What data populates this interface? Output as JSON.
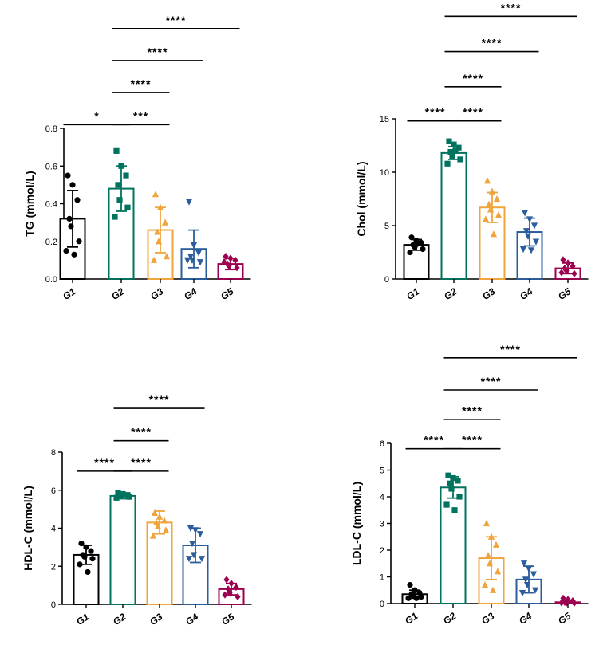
{
  "colors": {
    "G1": "#000000",
    "G2": "#00735e",
    "G3": "#f0a43c",
    "G4": "#2b5d9c",
    "G5": "#9c0050"
  },
  "chart_data": [
    {
      "type": "bar",
      "ylabel": "TG (mmol/L)",
      "ylim": [
        0,
        0.8
      ],
      "yticks": [
        "0.0",
        "0.2",
        "0.4",
        "0.6",
        "0.8"
      ],
      "categories": [
        "G1",
        "G2",
        "G3",
        "G4",
        "G5"
      ],
      "values": [
        0.32,
        0.48,
        0.26,
        0.16,
        0.08
      ],
      "errors": [
        0.15,
        0.12,
        0.12,
        0.1,
        0.03
      ],
      "points": [
        [
          0.55,
          0.5,
          0.42,
          0.32,
          0.28,
          0.2,
          0.15,
          0.13
        ],
        [
          0.68,
          0.6,
          0.55,
          0.5,
          0.42,
          0.38,
          0.33
        ],
        [
          0.45,
          0.38,
          0.3,
          0.25,
          0.2,
          0.12,
          0.1
        ],
        [
          0.41,
          0.18,
          0.14,
          0.12,
          0.1,
          0.09,
          0.1
        ],
        [
          0.12,
          0.11,
          0.1,
          0.08,
          0.07,
          0.06,
          0.09
        ]
      ],
      "markers": [
        "circle",
        "square",
        "triangle-up",
        "triangle-down",
        "diamond"
      ],
      "significance": [
        {
          "from": 0,
          "to": 1,
          "label": "*",
          "y": 0.82
        },
        {
          "from": 1,
          "to": 2,
          "label": "***",
          "y": 0.82
        },
        {
          "from": 1,
          "to": 2,
          "label": "****",
          "y": 0.99
        },
        {
          "from": 1,
          "to": 3,
          "label": "****",
          "y": 1.16
        },
        {
          "from": 1,
          "to": 4,
          "label": "****",
          "y": 1.33
        }
      ]
    },
    {
      "type": "bar",
      "ylabel": "Chol (mmol/L)",
      "ylim": [
        0,
        15
      ],
      "yticks": [
        "0",
        "5",
        "10",
        "15"
      ],
      "categories": [
        "G1",
        "G2",
        "G3",
        "G4",
        "G5"
      ],
      "values": [
        3.2,
        11.8,
        6.7,
        4.4,
        1.0
      ],
      "errors": [
        0.5,
        0.6,
        1.4,
        1.3,
        0.5
      ],
      "points": [
        [
          3.9,
          3.6,
          3.4,
          3.2,
          3.0,
          2.8,
          2.5,
          3.3
        ],
        [
          12.9,
          12.6,
          12.3,
          11.9,
          11.5,
          11.2,
          10.8,
          12.0
        ],
        [
          9.2,
          8.2,
          7.5,
          7.0,
          6.5,
          6.0,
          5.6,
          4.2
        ],
        [
          6.2,
          5.6,
          5.0,
          4.5,
          4.0,
          3.5,
          2.8,
          2.7
        ],
        [
          1.8,
          1.5,
          1.2,
          1.0,
          0.8,
          0.5,
          0.6
        ]
      ],
      "markers": [
        "circle",
        "square",
        "triangle-up",
        "triangle-down",
        "diamond"
      ],
      "significance": [
        {
          "from": 0,
          "to": 1,
          "label": "****",
          "y": 14.8
        },
        {
          "from": 1,
          "to": 2,
          "label": "****",
          "y": 14.8
        },
        {
          "from": 1,
          "to": 2,
          "label": "****",
          "y": 18.0
        },
        {
          "from": 1,
          "to": 3,
          "label": "****",
          "y": 21.3
        },
        {
          "from": 1,
          "to": 4,
          "label": "****",
          "y": 24.6
        }
      ]
    },
    {
      "type": "bar",
      "ylabel": "HDL-C (mmol/L)",
      "ylim": [
        0,
        8
      ],
      "yticks": [
        "0",
        "2",
        "4",
        "6",
        "8"
      ],
      "categories": [
        "G1",
        "G2",
        "G3",
        "G4",
        "G5"
      ],
      "values": [
        2.6,
        5.7,
        4.3,
        3.1,
        0.8
      ],
      "errors": [
        0.5,
        0.15,
        0.6,
        0.9,
        0.3
      ],
      "points": [
        [
          3.2,
          3.0,
          2.8,
          2.6,
          2.5,
          2.4,
          2.1,
          1.7
        ],
        [
          5.85,
          5.8,
          5.75,
          5.7,
          5.7,
          5.65,
          5.6
        ],
        [
          4.8,
          4.6,
          4.4,
          4.3,
          4.1,
          3.9,
          3.6
        ],
        [
          4.0,
          3.9,
          3.7,
          3.2,
          2.6,
          2.4,
          2.4
        ],
        [
          1.3,
          1.1,
          0.9,
          0.8,
          0.6,
          0.4,
          0.5
        ]
      ],
      "markers": [
        "circle",
        "square",
        "triangle-up",
        "triangle-down",
        "diamond"
      ],
      "significance": [
        {
          "from": 0,
          "to": 1,
          "label": "****",
          "y": 7.0
        },
        {
          "from": 1,
          "to": 2,
          "label": "****",
          "y": 7.0
        },
        {
          "from": 1,
          "to": 2,
          "label": "****",
          "y": 8.6
        },
        {
          "from": 1,
          "to": 3,
          "label": "****",
          "y": 10.3
        }
      ]
    },
    {
      "type": "bar",
      "ylabel": "LDL-C (mmol/L)",
      "ylim": [
        0,
        6
      ],
      "yticks": [
        "0",
        "1",
        "2",
        "3",
        "4",
        "5",
        "6"
      ],
      "categories": [
        "G1",
        "G2",
        "G3",
        "G4",
        "G5"
      ],
      "values": [
        0.35,
        4.35,
        1.7,
        0.9,
        0.05
      ],
      "errors": [
        0.15,
        0.4,
        0.8,
        0.5,
        0.05
      ],
      "points": [
        [
          0.7,
          0.5,
          0.4,
          0.35,
          0.3,
          0.25,
          0.2,
          0.2
        ],
        [
          4.8,
          4.7,
          4.6,
          4.5,
          4.3,
          4.0,
          3.7,
          3.5
        ],
        [
          3.0,
          2.5,
          2.2,
          1.8,
          1.5,
          1.2,
          0.7,
          0.5
        ],
        [
          1.5,
          1.3,
          1.1,
          0.9,
          0.7,
          0.5,
          0.4
        ],
        [
          0.2,
          0.15,
          0.1,
          0.05,
          0.02,
          0.02,
          0.03
        ]
      ],
      "markers": [
        "circle",
        "square",
        "triangle-up",
        "triangle-down",
        "diamond"
      ],
      "significance": [
        {
          "from": 0,
          "to": 1,
          "label": "****",
          "y": 5.8
        },
        {
          "from": 1,
          "to": 2,
          "label": "****",
          "y": 5.8
        },
        {
          "from": 1,
          "to": 2,
          "label": "****",
          "y": 6.9
        },
        {
          "from": 1,
          "to": 3,
          "label": "****",
          "y": 8.0
        },
        {
          "from": 1,
          "to": 4,
          "label": "****",
          "y": 9.2
        }
      ]
    }
  ]
}
